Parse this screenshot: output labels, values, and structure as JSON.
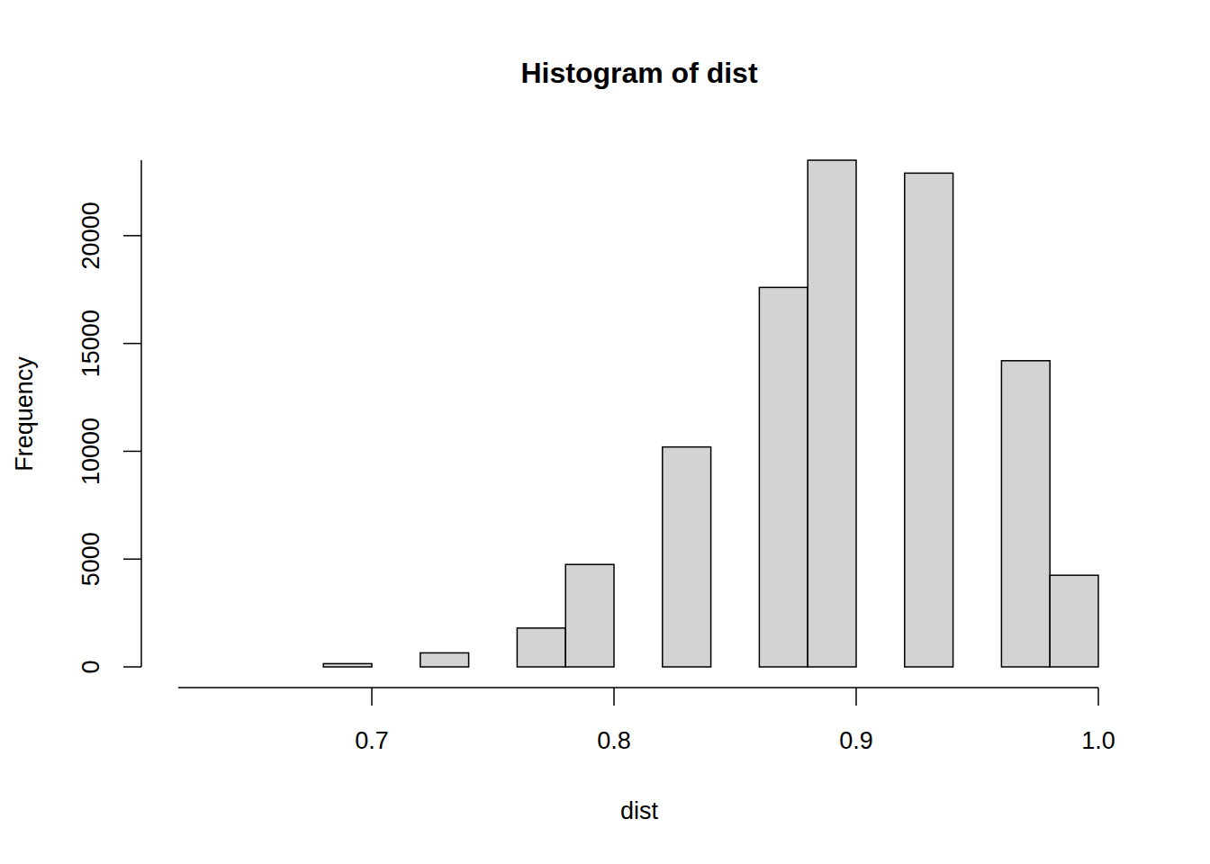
{
  "chart_data": {
    "type": "histogram",
    "title": "Histogram of dist",
    "x_label": "dist",
    "y_label": "Frequency",
    "bins": [
      0.62,
      0.64,
      0.66,
      0.68,
      0.7,
      0.72,
      0.74,
      0.76,
      0.78,
      0.8,
      0.82,
      0.84,
      0.86,
      0.88,
      0.9,
      0.92,
      0.94,
      0.96,
      0.98,
      1.0
    ],
    "values": [
      0,
      0,
      0,
      150,
      0,
      650,
      0,
      1800,
      4750,
      0,
      10200,
      0,
      17600,
      23500,
      0,
      22900,
      0,
      14200,
      4250
    ],
    "color": "#d3d3d3",
    "xlim": [
      0.62,
      1.0
    ],
    "xticks": [
      0.7,
      0.8,
      0.9,
      {
        "value": 1,
        "label": "1.0"
      }
    ],
    "ylim": [
      0,
      23500
    ],
    "yticks": [
      0,
      5000,
      10000,
      15000,
      20000
    ],
    "grid": false
  }
}
